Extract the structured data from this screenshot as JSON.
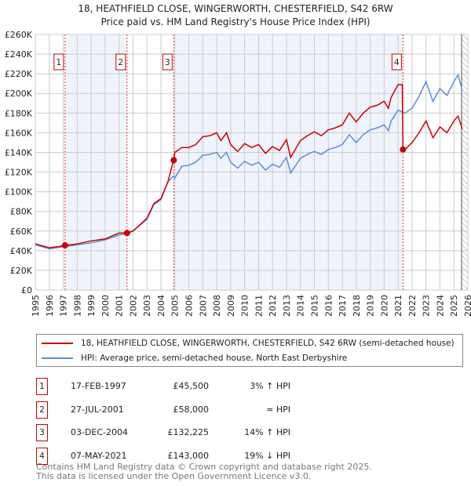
{
  "title": "18, HEATHFIELD CLOSE, WINGERWORTH, CHESTERFIELD, S42 6RW",
  "subtitle": "Price paid vs. HM Land Registry's House Price Index (HPI)",
  "chart_data": {
    "type": "line",
    "xlim": [
      1995,
      2026
    ],
    "ylim": [
      0,
      260000
    ],
    "yticks": [
      "£0",
      "£20K",
      "£40K",
      "£60K",
      "£80K",
      "£100K",
      "£120K",
      "£140K",
      "£160K",
      "£180K",
      "£200K",
      "£220K",
      "£240K",
      "£260K"
    ],
    "xticks": [
      "1995",
      "1996",
      "1997",
      "1998",
      "1999",
      "2000",
      "2001",
      "2002",
      "2003",
      "2004",
      "2005",
      "2006",
      "2007",
      "2008",
      "2009",
      "2010",
      "2011",
      "2012",
      "2013",
      "2014",
      "2015",
      "2016",
      "2017",
      "2018",
      "2019",
      "2020",
      "2021",
      "2022",
      "2023",
      "2024",
      "2025",
      "2026"
    ],
    "series": [
      {
        "name": "18, HEATHFIELD CLOSE, WINGERWORTH, CHESTERFIELD, S42 6RW (semi-detached house)",
        "color": "#cc0000",
        "x": [
          1995,
          1996,
          1997,
          1998,
          1999,
          2000,
          2001,
          2001.5,
          2002,
          2003,
          2003.5,
          2004,
          2004.5,
          2004.9,
          2005,
          2005.5,
          2006,
          2006.5,
          2007,
          2007.5,
          2008,
          2008.3,
          2008.7,
          2009,
          2009.5,
          2010,
          2010.5,
          2011,
          2011.5,
          2012,
          2012.5,
          2013,
          2013.3,
          2014,
          2014.5,
          2015,
          2015.5,
          2016,
          2016.5,
          2017,
          2017.5,
          2018,
          2018.5,
          2019,
          2019.5,
          2020,
          2020.3,
          2020.5,
          2021,
          2021.3,
          2021.35,
          2021.5,
          2022,
          2022.5,
          2023,
          2023.5,
          2024,
          2024.5,
          2025,
          2025.3,
          2025.6
        ],
        "y": [
          47,
          43,
          45,
          47,
          50,
          52,
          58,
          58,
          60,
          73,
          88,
          93,
          110,
          132,
          140,
          145,
          145,
          148,
          156,
          157,
          160,
          152,
          160,
          148,
          141,
          149,
          145,
          148,
          139,
          146,
          142,
          153,
          135,
          152,
          157,
          161,
          157,
          163,
          165,
          168,
          180,
          171,
          180,
          186,
          188,
          192,
          185,
          196,
          209,
          209,
          143,
          143,
          150,
          160,
          172,
          155,
          166,
          160,
          172,
          177,
          164
        ]
      },
      {
        "name": "HPI: Average price, semi-detached house, North East Derbyshire",
        "color": "#5b8fd4",
        "x": [
          1995,
          1996,
          1997,
          1998,
          1999,
          2000,
          2001,
          2001.5,
          2002,
          2003,
          2003.5,
          2004,
          2004.5,
          2004.9,
          2005,
          2005.5,
          2006,
          2006.5,
          2007,
          2007.5,
          2008,
          2008.3,
          2008.7,
          2009,
          2009.5,
          2010,
          2010.5,
          2011,
          2011.5,
          2012,
          2012.5,
          2013,
          2013.3,
          2014,
          2014.5,
          2015,
          2015.5,
          2016,
          2016.5,
          2017,
          2017.5,
          2018,
          2018.5,
          2019,
          2019.5,
          2020,
          2020.3,
          2020.5,
          2021,
          2021.5,
          2022,
          2022.5,
          2023,
          2023.5,
          2024,
          2024.5,
          2025,
          2025.3,
          2025.6
        ],
        "y": [
          46,
          42,
          44,
          46,
          48,
          51,
          56,
          57,
          60,
          72,
          87,
          92,
          110,
          116,
          114,
          126,
          127,
          130,
          137,
          138,
          140,
          134,
          140,
          130,
          124,
          131,
          127,
          130,
          122,
          128,
          125,
          135,
          119,
          134,
          138,
          141,
          138,
          143,
          145,
          148,
          158,
          150,
          158,
          163,
          165,
          168,
          162,
          172,
          183,
          180,
          185,
          197,
          212,
          192,
          205,
          198,
          212,
          219,
          203
        ]
      }
    ],
    "y_units": 1000,
    "sales": [
      {
        "n": "1",
        "x": 1997.13,
        "y": 45.5
      },
      {
        "n": "2",
        "x": 2001.57,
        "y": 58
      },
      {
        "n": "3",
        "x": 2004.92,
        "y": 132.2
      },
      {
        "n": "4",
        "x": 2021.35,
        "y": 143
      }
    ],
    "shaded": [
      [
        1997.13,
        2001.57
      ],
      [
        2004.92,
        2021.35
      ]
    ],
    "forecast_hatch_from": 2025.5
  },
  "legend": [
    "18, HEATHFIELD CLOSE, WINGERWORTH, CHESTERFIELD, S42 6RW (semi-detached house)",
    "HPI: Average price, semi-detached house, North East Derbyshire"
  ],
  "transactions": [
    {
      "n": "1",
      "date": "17-FEB-1997",
      "price": "£45,500",
      "hpi": "3% ↑ HPI"
    },
    {
      "n": "2",
      "date": "27-JUL-2001",
      "price": "£58,000",
      "hpi": "≈ HPI"
    },
    {
      "n": "3",
      "date": "03-DEC-2004",
      "price": "£132,225",
      "hpi": "14% ↑ HPI"
    },
    {
      "n": "4",
      "date": "07-MAY-2021",
      "price": "£143,000",
      "hpi": "19% ↓ HPI"
    }
  ],
  "footer": [
    "Contains HM Land Registry data © Crown copyright and database right 2025.",
    "This data is licensed under the Open Government Licence v3.0."
  ]
}
